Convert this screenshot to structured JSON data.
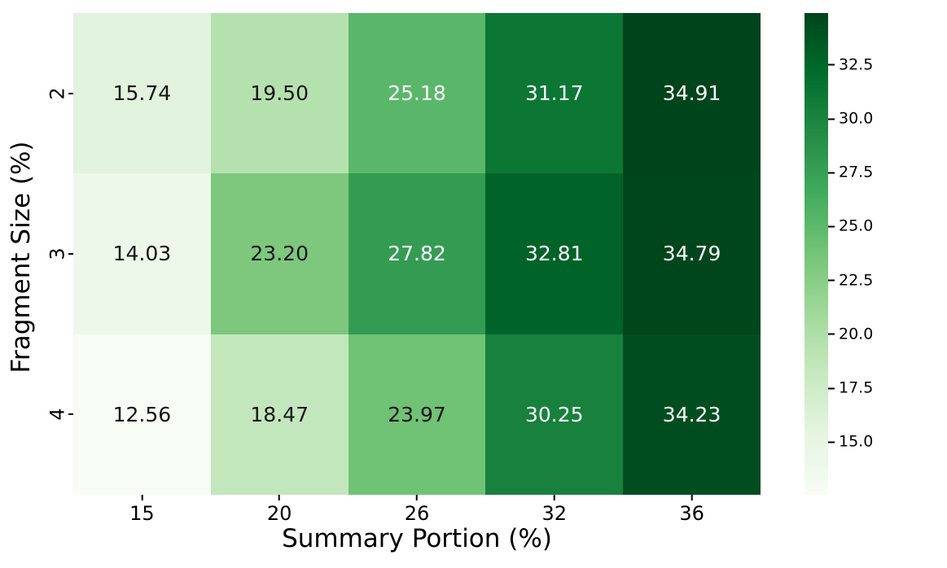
{
  "chart_data": {
    "type": "heatmap",
    "title": "",
    "xlabel": "Summary Portion (%)",
    "ylabel": "Fragment Size (%)",
    "x_categories": [
      "15",
      "20",
      "26",
      "32",
      "36"
    ],
    "y_categories": [
      "2",
      "3",
      "4"
    ],
    "values": [
      [
        15.74,
        19.5,
        25.18,
        31.17,
        34.91
      ],
      [
        14.03,
        23.2,
        27.82,
        32.81,
        34.79
      ],
      [
        12.56,
        18.47,
        23.97,
        30.25,
        34.23
      ]
    ],
    "vmin": 12.56,
    "vmax": 34.91,
    "grid": false,
    "legend": "none",
    "colormap": {
      "name": "Greens",
      "anchors": [
        "#f7fcf5",
        "#e5f5e0",
        "#c7e9c0",
        "#a1d99b",
        "#74c476",
        "#41ab5d",
        "#238b45",
        "#006d2c",
        "#00441b"
      ]
    },
    "annotation": {
      "decimals": 2,
      "dark_text_color": "#141414",
      "light_text_color": "#ffffff",
      "light_text_threshold": 0.54
    },
    "colorbar": {
      "position": "right",
      "tick_values": [
        32.5,
        30.0,
        27.5,
        25.0,
        22.5,
        20.0,
        17.5,
        15.0
      ],
      "tick_labels": [
        "32.5",
        "30.0",
        "27.5",
        "25.0",
        "22.5",
        "20.0",
        "17.5",
        "15.0"
      ]
    }
  }
}
